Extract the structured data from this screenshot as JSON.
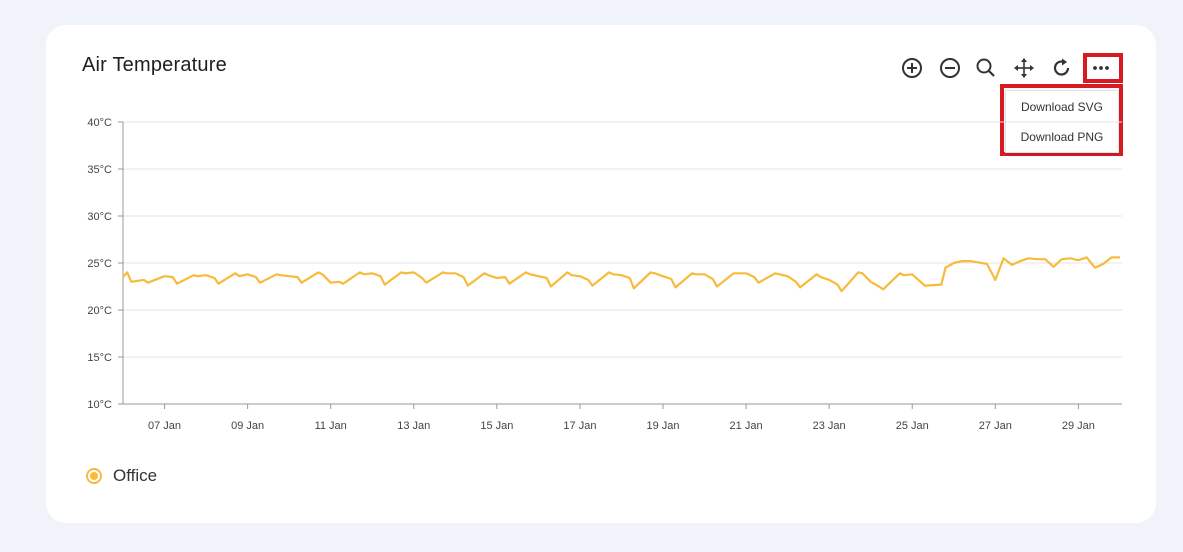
{
  "title": "Air Temperature",
  "toolbar": {
    "icons": [
      "zoom-in-icon",
      "zoom-out-icon",
      "search-icon",
      "pan-icon",
      "reset-icon",
      "more-icon"
    ]
  },
  "menu": {
    "download_svg": "Download SVG",
    "download_png": "Download PNG"
  },
  "legend": {
    "label": "Office"
  },
  "colors": {
    "series": "#f7bb3b",
    "highlight": "#d81b23"
  },
  "chart_data": {
    "type": "line",
    "title": "Air Temperature",
    "xlabel": "",
    "ylabel": "",
    "ylim": [
      10,
      40
    ],
    "yticks": [
      "10°C",
      "15°C",
      "20°C",
      "25°C",
      "30°C",
      "35°C",
      "40°C"
    ],
    "ytick_values": [
      10,
      15,
      20,
      25,
      30,
      35,
      40
    ],
    "xticks": [
      "07 Jan",
      "09 Jan",
      "11 Jan",
      "13 Jan",
      "15 Jan",
      "17 Jan",
      "19 Jan",
      "21 Jan",
      "23 Jan",
      "25 Jan",
      "27 Jan",
      "29 Jan"
    ],
    "xlim": [
      "06 Jan",
      "30 Jan"
    ],
    "grid": true,
    "legend_position": "bottom-left",
    "series": [
      {
        "name": "Office",
        "x_days": [
          6.0,
          6.1,
          6.2,
          6.5,
          6.6,
          7.0,
          7.2,
          7.3,
          7.7,
          7.8,
          8.0,
          8.2,
          8.3,
          8.7,
          8.8,
          9.0,
          9.2,
          9.3,
          9.7,
          9.8,
          10.0,
          10.2,
          10.3,
          10.7,
          10.8,
          11.0,
          11.2,
          11.3,
          11.7,
          11.8,
          12.0,
          12.2,
          12.3,
          12.7,
          12.8,
          13.0,
          13.2,
          13.3,
          13.7,
          13.8,
          14.0,
          14.2,
          14.3,
          14.7,
          14.8,
          15.0,
          15.2,
          15.3,
          15.7,
          15.8,
          16.0,
          16.2,
          16.3,
          16.7,
          16.8,
          17.0,
          17.2,
          17.3,
          17.7,
          17.8,
          18.0,
          18.2,
          18.3,
          18.7,
          18.8,
          19.0,
          19.2,
          19.3,
          19.7,
          19.8,
          20.0,
          20.2,
          20.3,
          20.7,
          20.8,
          21.0,
          21.2,
          21.3,
          21.7,
          21.8,
          22.0,
          22.2,
          22.3,
          22.7,
          22.8,
          23.0,
          23.2,
          23.3,
          23.7,
          23.8,
          24.0,
          24.2,
          24.3,
          24.7,
          24.8,
          25.0,
          25.2,
          25.3,
          25.7,
          25.8,
          26.0,
          26.2,
          26.4,
          26.8,
          27.0,
          27.2,
          27.4,
          27.6,
          27.8,
          28.0,
          28.2,
          28.4,
          28.6,
          28.8,
          29.0,
          29.2,
          29.4,
          29.6,
          29.8,
          30.0
        ],
        "values": [
          23.5,
          24.0,
          23.0,
          23.2,
          22.9,
          23.6,
          23.5,
          22.8,
          23.7,
          23.6,
          23.7,
          23.4,
          22.8,
          23.9,
          23.6,
          23.8,
          23.5,
          22.9,
          23.8,
          23.7,
          23.6,
          23.5,
          22.9,
          24.0,
          23.8,
          22.9,
          23.0,
          22.8,
          24.0,
          23.8,
          23.9,
          23.6,
          22.7,
          24.0,
          23.9,
          24.0,
          23.4,
          22.9,
          24.0,
          23.9,
          23.9,
          23.5,
          22.6,
          23.9,
          23.7,
          23.4,
          23.5,
          22.8,
          24.0,
          23.8,
          23.6,
          23.4,
          22.5,
          24.0,
          23.7,
          23.6,
          23.2,
          22.6,
          24.0,
          23.8,
          23.7,
          23.4,
          22.3,
          24.0,
          23.9,
          23.6,
          23.3,
          22.4,
          23.9,
          23.8,
          23.8,
          23.3,
          22.5,
          23.9,
          23.9,
          23.9,
          23.5,
          22.9,
          23.9,
          23.8,
          23.6,
          23.0,
          22.4,
          23.8,
          23.5,
          23.2,
          22.7,
          22.0,
          24.0,
          23.9,
          23.0,
          22.5,
          22.2,
          23.9,
          23.7,
          23.8,
          23.0,
          22.6,
          22.7,
          24.5,
          25.0,
          25.2,
          25.2,
          24.9,
          23.2,
          25.5,
          24.8,
          25.2,
          25.5,
          25.4,
          25.4,
          24.6,
          25.4,
          25.5,
          25.3,
          25.6,
          24.5,
          24.9,
          25.6,
          25.6
        ]
      }
    ]
  }
}
